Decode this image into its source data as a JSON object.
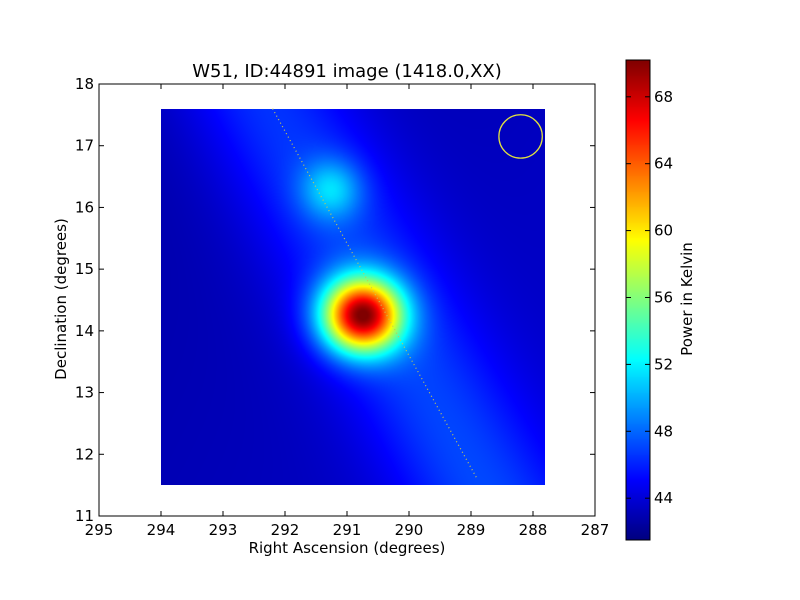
{
  "chart_data": {
    "type": "heatmap",
    "title": "W51, ID:44891 image (1418.0,XX)",
    "xlabel": "Right Ascension (degrees)",
    "ylabel": "Declination (degrees)",
    "xlim": [
      295,
      287
    ],
    "ylim": [
      11,
      18
    ],
    "x_ticks": [
      295,
      294,
      293,
      292,
      291,
      290,
      289,
      288,
      287
    ],
    "y_ticks": [
      11,
      12,
      13,
      14,
      15,
      16,
      17,
      18
    ],
    "image_extent": {
      "ra": [
        294.0,
        287.8
      ],
      "dec": [
        11.5,
        17.6
      ]
    },
    "colormap": "jet",
    "colorbar": {
      "label": "Power in Kelvin",
      "range": [
        41.5,
        70.2
      ],
      "ticks": [
        44,
        48,
        52,
        56,
        60,
        64,
        68
      ]
    },
    "sources": [
      {
        "ra": 290.75,
        "dec": 14.25,
        "peak_kelvin": 70,
        "sigma_ra": 0.45,
        "sigma_dec": 0.42
      },
      {
        "ra": 291.25,
        "dec": 16.3,
        "peak_kelvin": 51,
        "sigma_ra": 0.35,
        "sigma_dec": 0.35
      }
    ],
    "scan_track": {
      "ra": [
        292.2,
        288.9
      ],
      "dec": [
        17.6,
        11.6
      ],
      "color": "#c8c850"
    },
    "beam_circle": {
      "ra": 288.2,
      "dec": 17.15,
      "radius_deg": 0.35,
      "color": "#e0e040"
    }
  }
}
